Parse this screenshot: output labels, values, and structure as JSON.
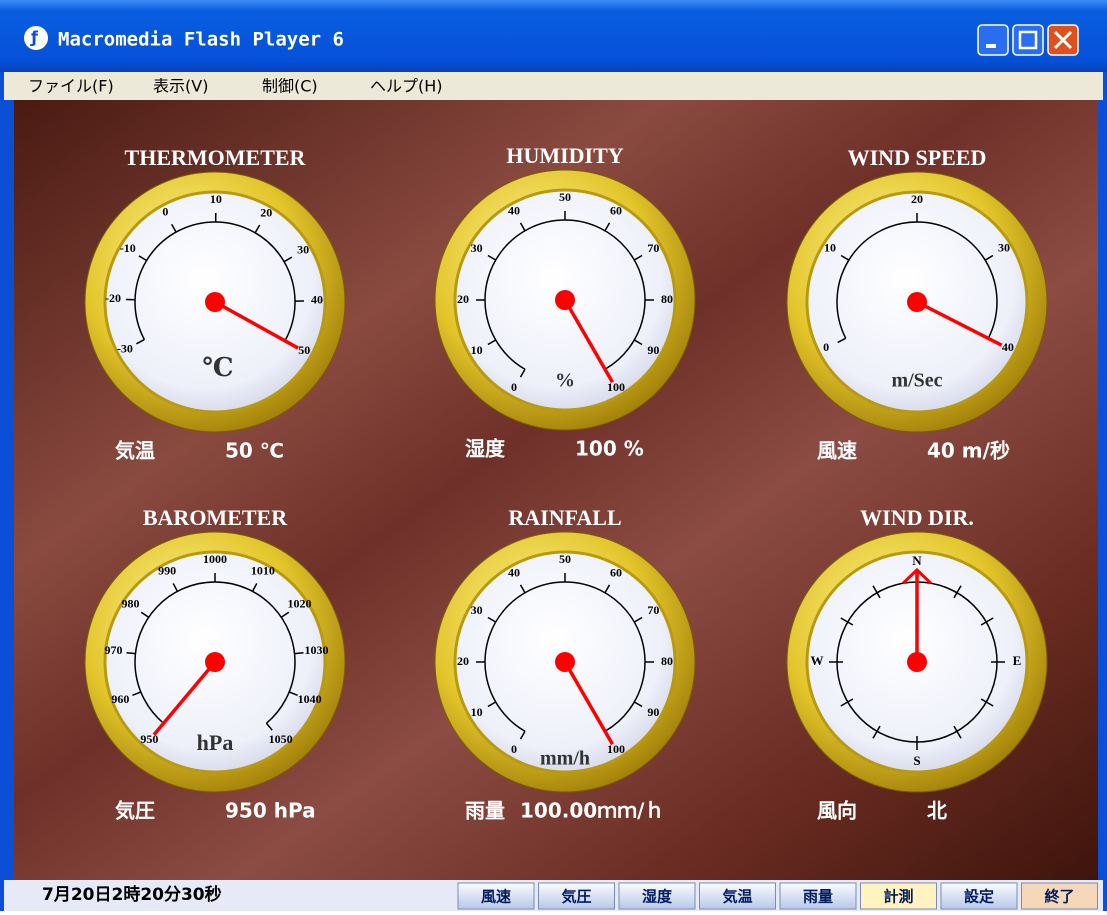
{
  "window": {
    "title": "Macromedia Flash Player 6"
  },
  "menu": [
    "ファイル(F)",
    "表示(V)",
    "制御(C)",
    "ヘルプ(H)"
  ],
  "gauges": [
    {
      "title": "THERMOMETER",
      "unit": "℃",
      "range": [
        -30,
        50
      ],
      "ticks": [
        -30,
        -20,
        -10,
        0,
        10,
        20,
        30,
        40,
        50
      ],
      "value": 50,
      "reading_label": "気温",
      "reading": "50 ℃"
    },
    {
      "title": "HUMIDITY",
      "unit": "%",
      "range": [
        0,
        100
      ],
      "ticks": [
        0,
        10,
        20,
        30,
        40,
        50,
        60,
        70,
        80,
        90,
        100
      ],
      "value": 100,
      "reading_label": "湿度",
      "reading": "100 %"
    },
    {
      "title": "WIND SPEED",
      "unit": "m/Sec",
      "range": [
        0,
        40
      ],
      "ticks": [
        0,
        10,
        20,
        30,
        40
      ],
      "value": 40,
      "reading_label": "風速",
      "reading": "40 m/秒"
    },
    {
      "title": "BAROMETER",
      "unit": "hPa",
      "range": [
        950,
        1050
      ],
      "ticks": [
        950,
        960,
        970,
        980,
        990,
        1000,
        1010,
        1020,
        1030,
        1040,
        1050
      ],
      "value": 950,
      "reading_label": "気圧",
      "reading": "950 hPa"
    },
    {
      "title": "RAINFALL",
      "unit": "mm/h",
      "range": [
        0,
        100
      ],
      "ticks": [
        0,
        10,
        20,
        30,
        40,
        50,
        60,
        70,
        80,
        90,
        100
      ],
      "value": 100,
      "reading_label": "雨量",
      "reading": "100.00ｍｍ/ｈ"
    },
    {
      "title": "WIND DIR.",
      "directions": [
        "N",
        "E",
        "S",
        "W"
      ],
      "value": 0,
      "reading_label": "風向",
      "reading": "北"
    }
  ],
  "status": {
    "time": "7月20日2時20分30秒",
    "buttons": [
      "風速",
      "気圧",
      "湿度",
      "気温",
      "雨量",
      "計測",
      "設定",
      "終了"
    ]
  }
}
